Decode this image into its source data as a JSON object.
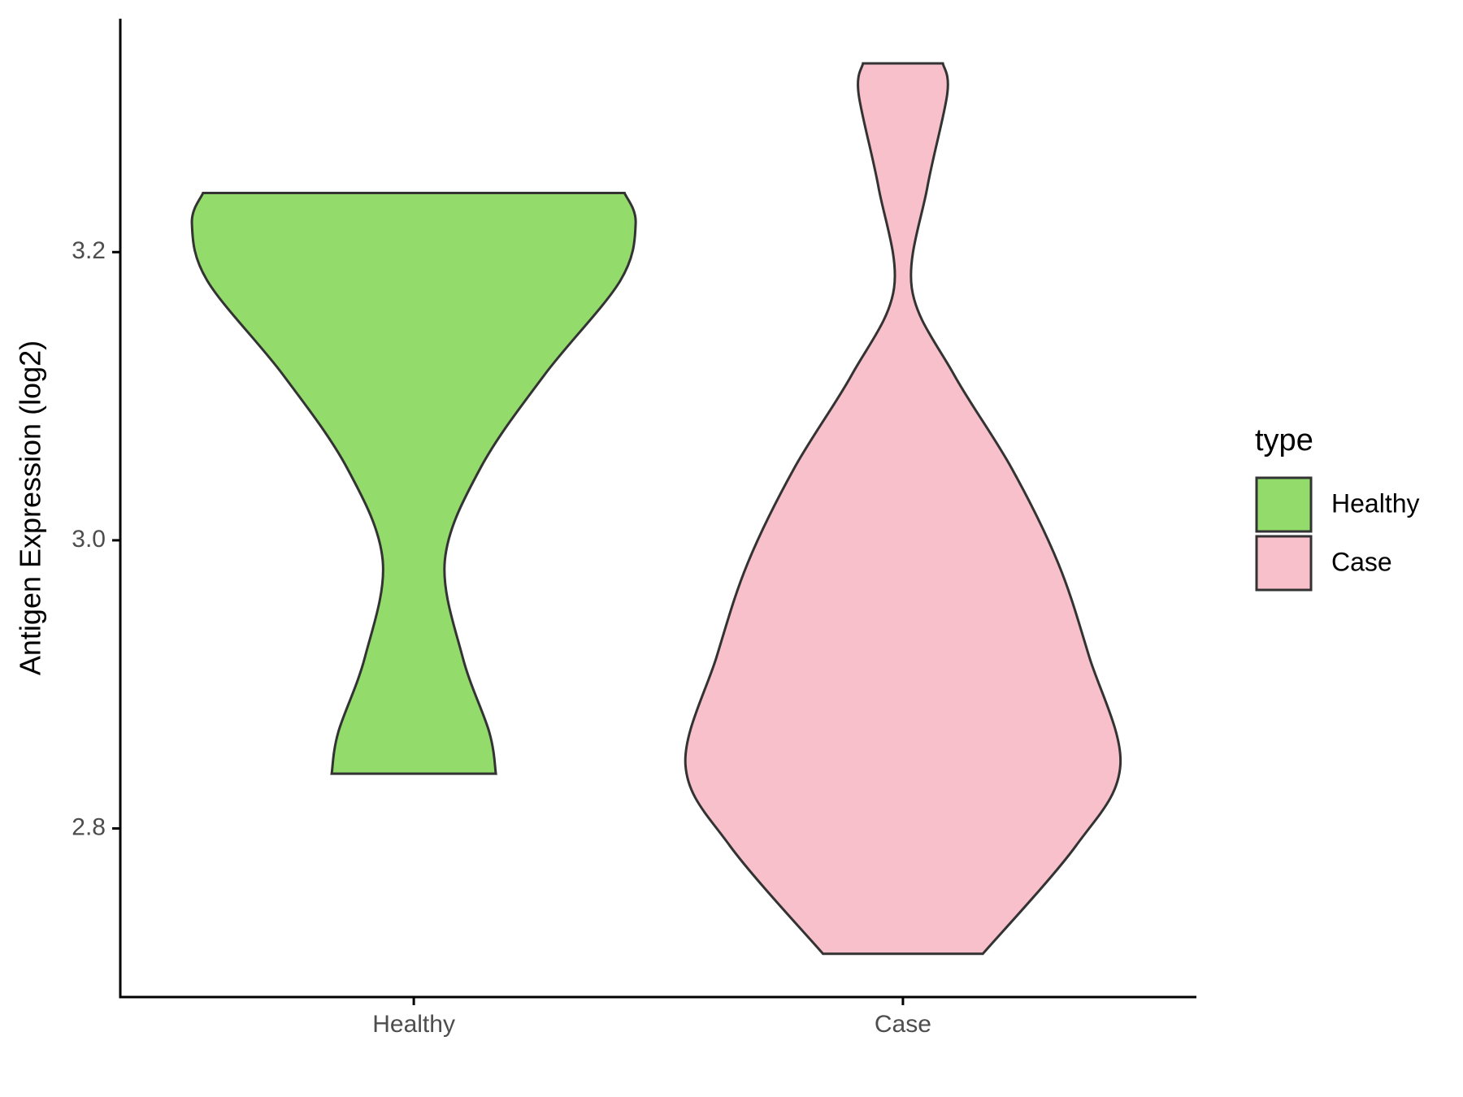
{
  "chart_data": {
    "type": "violin",
    "y_label": "Antigen Expression (log2)",
    "legend_title": "type",
    "categories": [
      "Healthy",
      "Case"
    ],
    "ylim": [
      2.683,
      3.362
    ],
    "yticks": [
      {
        "value": 2.8,
        "label": "2.8"
      },
      {
        "value": 3.0,
        "label": "3.0"
      },
      {
        "value": 3.2,
        "label": "3.2"
      }
    ],
    "series": [
      {
        "name": "Healthy",
        "color": "#93dc6b",
        "y": [
          3.241,
          3.22,
          3.18,
          3.115,
          3.05,
          2.986,
          2.919,
          2.867,
          2.838
        ],
        "density": [
          0.95,
          1,
          0.93,
          0.59,
          0.3,
          0.14,
          0.22,
          0.34,
          0.37
        ]
      },
      {
        "name": "Case",
        "color": "#f8c0cb",
        "y": [
          3.331,
          3.31,
          3.245,
          3.175,
          3.115,
          3.05,
          2.984,
          2.919,
          2.844,
          2.788,
          2.713
        ],
        "density": [
          0.18,
          0.2,
          0.11,
          0.04,
          0.23,
          0.49,
          0.7,
          0.84,
          0.98,
          0.78,
          0.36
        ]
      }
    ]
  }
}
